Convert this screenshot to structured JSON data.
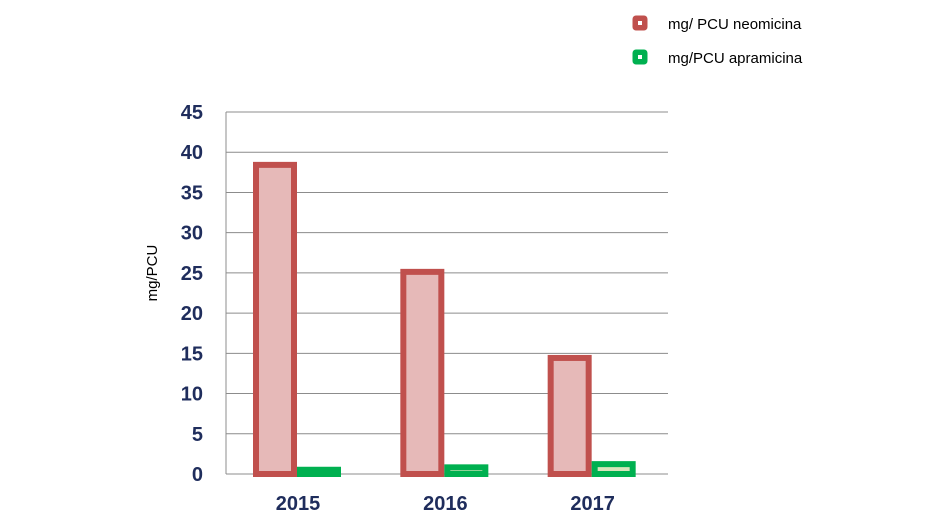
{
  "chart_data": {
    "type": "bar",
    "categories": [
      "2015",
      "2016",
      "2017"
    ],
    "series": [
      {
        "name": "mg/ PCU neomicina",
        "values": [
          38.8,
          25.5,
          14.8
        ],
        "stroke": "#c0504d",
        "fill": "#e6b9b8"
      },
      {
        "name": "mg/PCU apramicina",
        "values": [
          0.9,
          1.2,
          1.6
        ],
        "stroke": "#00b050",
        "fill": "#d8e4bc"
      }
    ],
    "title": "",
    "xlabel": "",
    "ylabel": "mg/PCU",
    "ylim": [
      0,
      45
    ],
    "yticks": [
      "0",
      "5",
      "10",
      "15",
      "20",
      "25",
      "30",
      "35",
      "40",
      "45"
    ],
    "grid": true,
    "legend_position": "top-right"
  }
}
